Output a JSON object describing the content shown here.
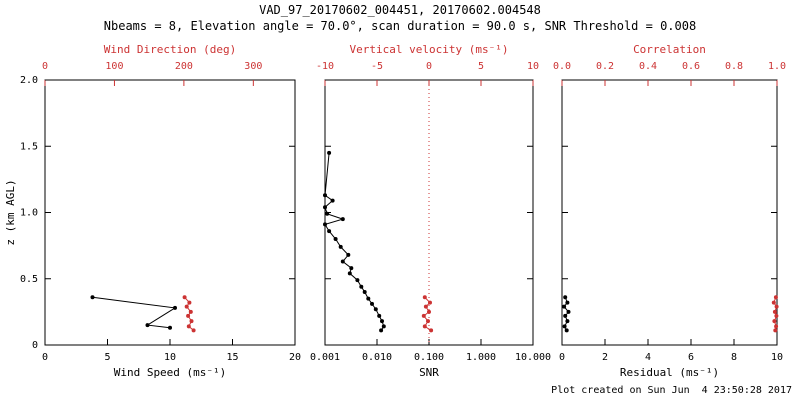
{
  "header": {
    "title": "VAD_97_20170602_004451, 20170602.004548",
    "subtitle": "Nbeams = 8, Elevation angle = 70.0°, scan duration = 90.0 s, SNR Threshold = 0.008"
  },
  "footer": {
    "created": "Plot created on Sun Jun  4 23:50:28 2017"
  },
  "colors": {
    "axis_black": "#000000",
    "accent_red": "#cc3333"
  },
  "chart_data": [
    {
      "id": "wind",
      "type": "line",
      "x_bottom": {
        "label": "Wind Speed (ms⁻¹)",
        "scale": "linear",
        "range": [
          0,
          20
        ],
        "ticks": [
          0,
          5,
          10,
          15,
          20
        ],
        "tick_labels": [
          "0",
          "5",
          "10",
          "15",
          "20"
        ],
        "color": "#000000"
      },
      "x_top": {
        "label": "Wind Direction (deg)",
        "scale": "linear",
        "range": [
          0,
          360
        ],
        "ticks": [
          0,
          100,
          200,
          300
        ],
        "tick_labels": [
          "0",
          "100",
          "200",
          "300"
        ],
        "color": "#cc3333"
      },
      "y_axis": {
        "label": "z (km AGL)",
        "range": [
          0,
          2
        ],
        "ticks": [
          0,
          0.5,
          1,
          1.5,
          2
        ],
        "tick_labels": [
          "0",
          "0.5",
          "1.0",
          "1.5",
          "2.0"
        ]
      },
      "series": [
        {
          "name": "wind-speed",
          "axis": "bottom",
          "color": "#000000",
          "points": [
            [
              3.8,
              0.36
            ],
            [
              10.4,
              0.28
            ],
            [
              8.2,
              0.15
            ],
            [
              10.0,
              0.13
            ]
          ]
        },
        {
          "name": "wind-direction",
          "axis": "top",
          "color": "#cc3333",
          "points": [
            [
              201,
              0.36
            ],
            [
              208,
              0.32
            ],
            [
              204,
              0.29
            ],
            [
              210,
              0.25
            ],
            [
              206,
              0.22
            ],
            [
              211,
              0.18
            ],
            [
              207,
              0.14
            ],
            [
              214,
              0.11
            ]
          ]
        }
      ]
    },
    {
      "id": "snr",
      "type": "line",
      "x_bottom": {
        "label": "SNR",
        "scale": "log",
        "range": [
          0.001,
          10
        ],
        "ticks": [
          0.001,
          0.01,
          0.1,
          1,
          10
        ],
        "tick_labels": [
          "0.001",
          "0.010",
          "0.100",
          "1.000",
          "10.000"
        ],
        "color": "#000000"
      },
      "x_top": {
        "label": "Vertical velocity (ms⁻¹)",
        "scale": "linear",
        "range": [
          -10,
          10
        ],
        "ticks": [
          -10,
          -5,
          0,
          5,
          10
        ],
        "tick_labels": [
          "-10",
          "-5",
          "0",
          "5",
          "10"
        ],
        "color": "#cc3333"
      },
      "y_axis": {
        "label": "",
        "range": [
          0,
          2
        ],
        "ticks": [
          0,
          0.5,
          1,
          1.5,
          2
        ],
        "tick_labels": []
      },
      "ref_line": {
        "axis": "top",
        "value": 0,
        "color": "#cc3333",
        "style": "dotted"
      },
      "series": [
        {
          "name": "snr-profile",
          "axis": "bottom",
          "color": "#000000",
          "points": [
            [
              0.0012,
              1.45
            ],
            [
              0.001,
              1.13
            ],
            [
              0.0014,
              1.09
            ],
            [
              0.001,
              1.04
            ],
            [
              0.0011,
              0.99
            ],
            [
              0.0022,
              0.95
            ],
            [
              0.001,
              0.91
            ],
            [
              0.0012,
              0.86
            ],
            [
              0.0016,
              0.8
            ],
            [
              0.002,
              0.74
            ],
            [
              0.0028,
              0.68
            ],
            [
              0.0022,
              0.63
            ],
            [
              0.0032,
              0.58
            ],
            [
              0.003,
              0.54
            ],
            [
              0.0042,
              0.49
            ],
            [
              0.005,
              0.44
            ],
            [
              0.0058,
              0.4
            ],
            [
              0.0068,
              0.35
            ],
            [
              0.008,
              0.31
            ],
            [
              0.0095,
              0.27
            ],
            [
              0.011,
              0.22
            ],
            [
              0.0125,
              0.18
            ],
            [
              0.0135,
              0.14
            ],
            [
              0.012,
              0.11
            ]
          ]
        },
        {
          "name": "vertical-velocity",
          "axis": "top",
          "color": "#cc3333",
          "points": [
            [
              -0.4,
              0.36
            ],
            [
              0.1,
              0.32
            ],
            [
              -0.3,
              0.29
            ],
            [
              0.0,
              0.25
            ],
            [
              -0.5,
              0.22
            ],
            [
              -0.1,
              0.18
            ],
            [
              -0.4,
              0.14
            ],
            [
              0.2,
              0.11
            ]
          ]
        }
      ]
    },
    {
      "id": "residual",
      "type": "line",
      "x_bottom": {
        "label": "Residual (ms⁻¹)",
        "scale": "linear",
        "range": [
          0,
          10
        ],
        "ticks": [
          0,
          2,
          4,
          6,
          8,
          10
        ],
        "tick_labels": [
          "0",
          "2",
          "4",
          "6",
          "8",
          "10"
        ],
        "color": "#000000"
      },
      "x_top": {
        "label": "Correlation",
        "scale": "linear",
        "range": [
          0,
          1
        ],
        "ticks": [
          0,
          0.2,
          0.4,
          0.6,
          0.8,
          1
        ],
        "tick_labels": [
          "0.0",
          "0.2",
          "0.4",
          "0.6",
          "0.8",
          "1.0"
        ],
        "color": "#cc3333"
      },
      "y_axis": {
        "label": "",
        "range": [
          0,
          2
        ],
        "ticks": [
          0,
          0.5,
          1,
          1.5,
          2
        ],
        "tick_labels": []
      },
      "series": [
        {
          "name": "residual-profile",
          "axis": "bottom",
          "color": "#000000",
          "points": [
            [
              0.15,
              0.36
            ],
            [
              0.25,
              0.32
            ],
            [
              0.1,
              0.29
            ],
            [
              0.3,
              0.25
            ],
            [
              0.15,
              0.22
            ],
            [
              0.25,
              0.18
            ],
            [
              0.12,
              0.14
            ],
            [
              0.22,
              0.11
            ]
          ]
        },
        {
          "name": "correlation-profile",
          "axis": "top",
          "color": "#cc3333",
          "points": [
            [
              0.995,
              0.36
            ],
            [
              0.985,
              0.32
            ],
            [
              0.998,
              0.29
            ],
            [
              0.99,
              0.25
            ],
            [
              0.997,
              0.22
            ],
            [
              0.988,
              0.18
            ],
            [
              0.996,
              0.14
            ],
            [
              0.992,
              0.11
            ]
          ]
        }
      ]
    }
  ]
}
